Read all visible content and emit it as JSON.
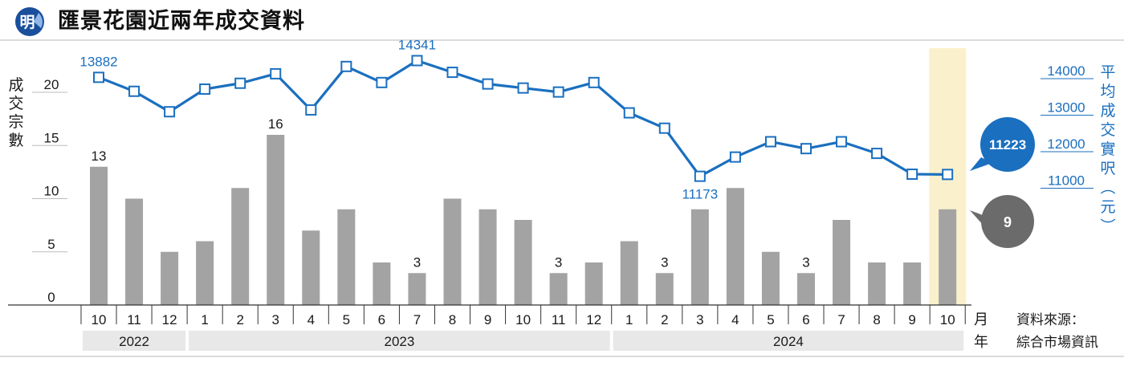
{
  "header": {
    "title": "匯景花園近兩年成交資料",
    "logo_char": "明"
  },
  "chart_data": {
    "type": "bar+line",
    "title": "匯景花園近兩年成交資料",
    "categories": [
      "10",
      "11",
      "12",
      "1",
      "2",
      "3",
      "4",
      "5",
      "6",
      "7",
      "8",
      "9",
      "10",
      "11",
      "12",
      "1",
      "2",
      "3",
      "4",
      "5",
      "6",
      "7",
      "8",
      "9",
      "10"
    ],
    "years": [
      {
        "label": "2022",
        "from": 0,
        "to": 2
      },
      {
        "label": "2023",
        "from": 3,
        "to": 14
      },
      {
        "label": "2024",
        "from": 15,
        "to": 24
      }
    ],
    "month_label": "月",
    "year_label": "年",
    "source_lines": [
      "資料來源：",
      "綜合市場資訊"
    ],
    "bars": {
      "name": "成交宗數",
      "values": [
        13,
        10,
        5,
        6,
        11,
        16,
        7,
        9,
        4,
        3,
        10,
        9,
        8,
        3,
        4,
        6,
        3,
        9,
        11,
        5,
        3,
        8,
        4,
        4,
        9
      ],
      "labeled": {
        "0": "13",
        "5": "16",
        "9": "3",
        "13": "3",
        "16": "3",
        "20": "3"
      },
      "color": "#a3a3a3"
    },
    "line": {
      "name": "平均成交實呎（元）",
      "values": [
        13882,
        13500,
        12940,
        13560,
        13720,
        13980,
        12990,
        14180,
        13740,
        14341,
        14020,
        13700,
        13590,
        13480,
        13740,
        12910,
        12490,
        11173,
        11700,
        12120,
        11930,
        12120,
        11800,
        11230,
        11223
      ],
      "labeled": {
        "0": "13882",
        "9": "14341",
        "17": "11173"
      },
      "color": "#1a6fbf"
    },
    "left_axis": {
      "label": "成交宗數",
      "ticks": [
        0,
        5,
        10,
        15,
        20
      ],
      "ylim": [
        0,
        20
      ]
    },
    "right_axis": {
      "label": "平均成交實呎（元）",
      "ticks": [
        "11000",
        "12000",
        "13000",
        "14000"
      ]
    },
    "highlight_index": 24,
    "callouts": {
      "line_value": "11223",
      "bar_value": "9",
      "line_color": "#1a6fbf",
      "bar_color": "#6b6b6b"
    },
    "colors": {
      "band": "#e8e8e8",
      "highlight": "#faf1cc",
      "axis_text_blue": "#1a6fbf"
    }
  }
}
